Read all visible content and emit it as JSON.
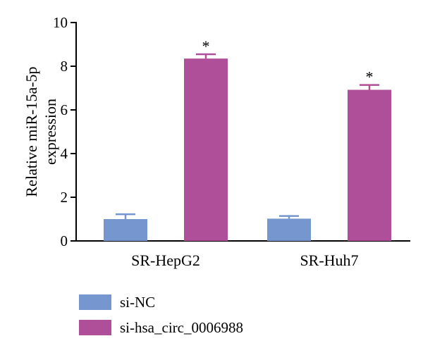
{
  "chart_data": {
    "type": "bar",
    "categories": [
      "SR-HepG2",
      "SR-Huh7"
    ],
    "series": [
      {
        "name": "si-NC",
        "color": "#7596cf",
        "values": [
          1.0,
          1.02
        ],
        "errors": [
          0.22,
          0.12
        ]
      },
      {
        "name": "si-hsa_circ_0006988",
        "color": "#b04f99",
        "values": [
          8.35,
          6.92
        ],
        "errors": [
          0.2,
          0.22
        ]
      }
    ],
    "ylabel": "Relative miR-15a-5p expression",
    "ylabel_lines": [
      "Relative miR-15a-5p",
      "expression"
    ],
    "ylim": [
      0,
      10
    ],
    "yticks": [
      "0",
      "2",
      "4",
      "6",
      "8",
      "10"
    ],
    "annotations": [
      "*",
      "*"
    ],
    "grid": false,
    "legend_position": "bottom-left"
  }
}
